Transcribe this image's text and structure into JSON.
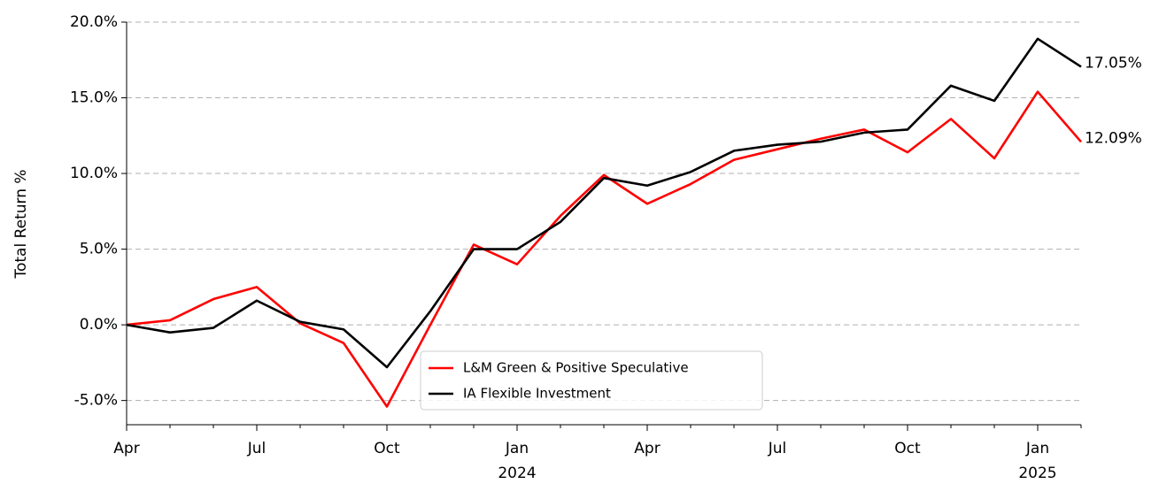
{
  "chart_data": {
    "type": "line",
    "ylabel": "Total Return %",
    "x": [
      "2023-04",
      "2023-05",
      "2023-06",
      "2023-07",
      "2023-08",
      "2023-09",
      "2023-10",
      "2023-11",
      "2023-12",
      "2024-01",
      "2024-02",
      "2024-03",
      "2024-04",
      "2024-05",
      "2024-06",
      "2024-07",
      "2024-08",
      "2024-09",
      "2024-10",
      "2024-11",
      "2024-12",
      "2025-01",
      "2025-02"
    ],
    "series": [
      {
        "name": "L&M Green & Positive Speculative",
        "color": "#ff0000",
        "values": [
          0,
          0.3,
          1.7,
          2.5,
          0.1,
          -1.2,
          -5.4,
          0,
          5.3,
          4.0,
          7.2,
          9.9,
          8.0,
          9.3,
          10.9,
          11.6,
          12.3,
          12.9,
          11.4,
          13.6,
          11.0,
          15.4,
          12.09
        ],
        "value_labels": [
          null,
          null,
          null,
          null,
          null,
          null,
          null,
          null,
          null,
          null,
          null,
          null,
          null,
          null,
          null,
          null,
          null,
          null,
          null,
          null,
          null,
          null,
          "12.09%"
        ]
      },
      {
        "name": "IA Flexible Investment",
        "color": "#000000",
        "values": [
          0,
          -0.5,
          -0.2,
          1.6,
          0.2,
          -0.3,
          -2.8,
          0.9,
          5.0,
          5.0,
          6.8,
          9.7,
          9.2,
          10.1,
          11.5,
          11.9,
          12.1,
          12.7,
          12.9,
          15.8,
          14.8,
          18.9,
          17.05
        ],
        "value_labels": [
          null,
          null,
          null,
          null,
          null,
          null,
          null,
          null,
          null,
          null,
          null,
          null,
          null,
          null,
          null,
          null,
          null,
          null,
          null,
          null,
          null,
          null,
          "17.05%"
        ]
      }
    ],
    "xlim": [
      "2023-04",
      "2025-02"
    ],
    "xticks": [
      {
        "value": "2023-04",
        "label": "Apr"
      },
      {
        "value": "2023-07",
        "label": "Jul"
      },
      {
        "value": "2023-10",
        "label": "Oct"
      },
      {
        "value": "2024-01",
        "label": "Jan"
      },
      {
        "value": "2024-04",
        "label": "Apr"
      },
      {
        "value": "2024-07",
        "label": "Jul"
      },
      {
        "value": "2024-10",
        "label": "Oct"
      },
      {
        "value": "2025-01",
        "label": "Jan"
      }
    ],
    "xtick_years": [
      {
        "value": "2024-01",
        "label": "2024"
      },
      {
        "value": "2025-01",
        "label": "2025"
      }
    ],
    "ylim": [
      -6.6,
      20
    ],
    "yticks": [
      {
        "value": -5,
        "label": "-5.0%"
      },
      {
        "value": 0,
        "label": "0.0%"
      },
      {
        "value": 5,
        "label": "5.0%"
      },
      {
        "value": 10,
        "label": "10.0%"
      },
      {
        "value": 15,
        "label": "15.0%"
      },
      {
        "value": 20,
        "label": "20.0%"
      }
    ],
    "grid": true,
    "legend": "lower center"
  }
}
